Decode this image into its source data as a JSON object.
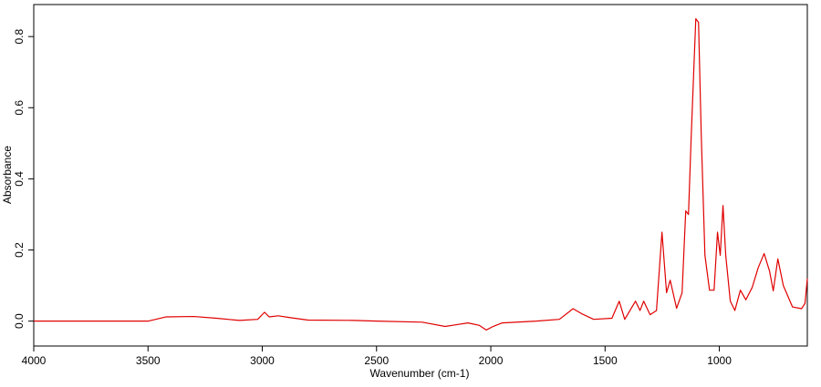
{
  "chart_data": {
    "type": "line",
    "xlabel": "Wavenumber (cm-1)",
    "ylabel": "Absorbance",
    "color": "#e00000",
    "xlim": [
      4000,
      615
    ],
    "xticks": [
      4000,
      3500,
      3000,
      2500,
      2000,
      1500,
      1000
    ],
    "ylim": [
      -0.07,
      0.89
    ],
    "yticks": [
      {
        "value": 0,
        "label": "0.0"
      },
      0.2,
      0.4,
      0.6,
      0.8
    ],
    "x": [
      4000,
      3700,
      3500,
      3420,
      3300,
      3200,
      3100,
      3020,
      2990,
      2970,
      2930,
      2880,
      2800,
      2600,
      2500,
      2300,
      2200,
      2150,
      2100,
      2050,
      2020,
      1990,
      1950,
      1800,
      1700,
      1640,
      1600,
      1550,
      1470,
      1438,
      1414,
      1367,
      1347,
      1331,
      1303,
      1275,
      1251,
      1231,
      1215,
      1187,
      1163,
      1147,
      1135,
      1123,
      1103,
      1091,
      1079,
      1063,
      1043,
      1023,
      1008,
      996,
      984,
      972,
      952,
      932,
      908,
      884,
      856,
      830,
      804,
      780,
      764,
      744,
      720,
      680,
      640,
      625,
      615
    ],
    "values": [
      0.0,
      0.0,
      0.0,
      0.012,
      0.013,
      0.008,
      0.002,
      0.005,
      0.025,
      0.012,
      0.015,
      0.01,
      0.003,
      0.002,
      0.0,
      -0.003,
      -0.015,
      -0.01,
      -0.005,
      -0.012,
      -0.025,
      -0.015,
      -0.005,
      0.0,
      0.005,
      0.035,
      0.02,
      0.005,
      0.008,
      0.056,
      0.005,
      0.056,
      0.03,
      0.056,
      0.018,
      0.03,
      0.25,
      0.08,
      0.115,
      0.036,
      0.08,
      0.31,
      0.3,
      0.52,
      0.85,
      0.84,
      0.52,
      0.185,
      0.087,
      0.087,
      0.25,
      0.185,
      0.325,
      0.185,
      0.056,
      0.03,
      0.087,
      0.06,
      0.095,
      0.15,
      0.19,
      0.14,
      0.085,
      0.175,
      0.1,
      0.04,
      0.035,
      0.05,
      0.12
    ]
  }
}
